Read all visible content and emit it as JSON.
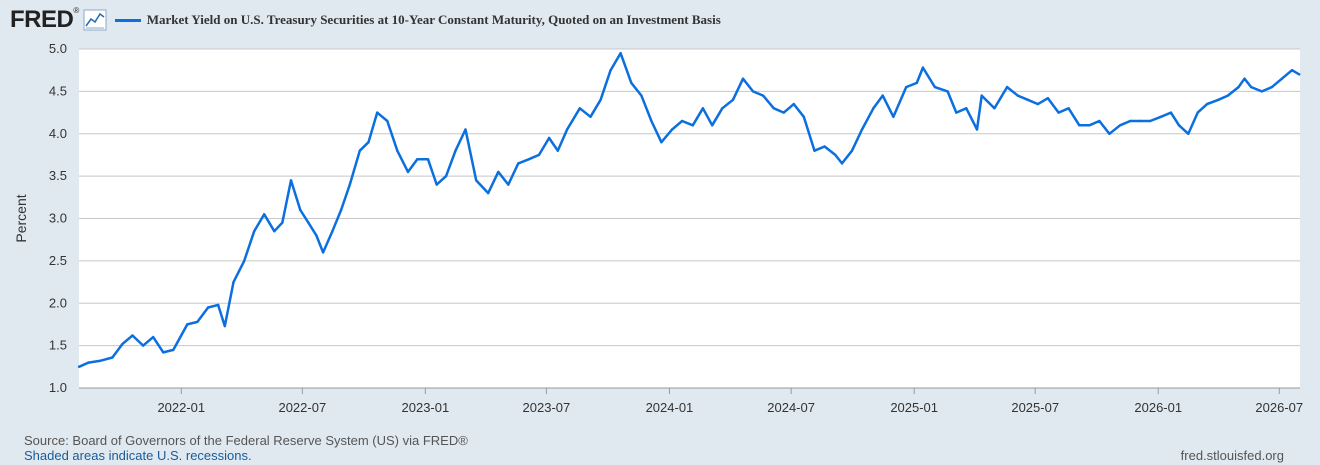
{
  "header": {
    "logo_text": "FRED",
    "logo_icon": "line-chart-icon",
    "legend_label": "Market Yield on U.S. Treasury Securities at 10-Year Constant Maturity, Quoted on an Investment Basis"
  },
  "colors": {
    "background": "#e1e9f0",
    "plot_background": "#ffffff",
    "series": "#0b6fe0",
    "grid": "#c8c8c8"
  },
  "footer": {
    "source": "Source: Board of Governors of the Federal Reserve System (US) via FRED®",
    "note": "Shaded areas indicate U.S. recessions.",
    "site": "fred.stlouisfed.org"
  },
  "chart_data": {
    "type": "line",
    "title": "Market Yield on U.S. Treasury Securities at 10-Year Constant Maturity, Quoted on an Investment Basis",
    "xlabel": "",
    "ylabel": "Percent",
    "ylim": [
      1.0,
      5.0
    ],
    "xlim": [
      "2021-08-01",
      "2026-08-01"
    ],
    "yticks": [
      "1.0",
      "1.5",
      "2.0",
      "2.5",
      "3.0",
      "3.5",
      "4.0",
      "4.5",
      "5.0"
    ],
    "xticks": [
      "2022-01",
      "2022-07",
      "2023-01",
      "2023-07",
      "2024-01",
      "2024-07",
      "2025-01",
      "2025-07",
      "2026-01",
      "2026-07"
    ],
    "grid": true,
    "legend": "top-left",
    "series": [
      {
        "name": "Market Yield on U.S. Treasury Securities at 10-Year Constant Maturity, Quoted on an Investment Basis",
        "points": [
          [
            "2021-08-01",
            1.25
          ],
          [
            "2021-08-15",
            1.3
          ],
          [
            "2021-09-01",
            1.32
          ],
          [
            "2021-09-20",
            1.36
          ],
          [
            "2021-10-05",
            1.52
          ],
          [
            "2021-10-20",
            1.62
          ],
          [
            "2021-11-05",
            1.5
          ],
          [
            "2021-11-20",
            1.6
          ],
          [
            "2021-12-05",
            1.42
          ],
          [
            "2021-12-20",
            1.45
          ],
          [
            "2022-01-10",
            1.75
          ],
          [
            "2022-01-25",
            1.78
          ],
          [
            "2022-02-10",
            1.95
          ],
          [
            "2022-02-25",
            1.98
          ],
          [
            "2022-03-07",
            1.73
          ],
          [
            "2022-03-20",
            2.25
          ],
          [
            "2022-04-05",
            2.5
          ],
          [
            "2022-04-20",
            2.85
          ],
          [
            "2022-05-05",
            3.05
          ],
          [
            "2022-05-20",
            2.85
          ],
          [
            "2022-06-01",
            2.95
          ],
          [
            "2022-06-14",
            3.45
          ],
          [
            "2022-06-28",
            3.1
          ],
          [
            "2022-07-10",
            2.95
          ],
          [
            "2022-07-22",
            2.8
          ],
          [
            "2022-08-01",
            2.6
          ],
          [
            "2022-08-15",
            2.85
          ],
          [
            "2022-08-28",
            3.1
          ],
          [
            "2022-09-10",
            3.4
          ],
          [
            "2022-09-25",
            3.8
          ],
          [
            "2022-10-08",
            3.9
          ],
          [
            "2022-10-21",
            4.25
          ],
          [
            "2022-11-05",
            4.15
          ],
          [
            "2022-11-20",
            3.8
          ],
          [
            "2022-12-06",
            3.55
          ],
          [
            "2022-12-20",
            3.7
          ],
          [
            "2023-01-05",
            3.7
          ],
          [
            "2023-01-18",
            3.4
          ],
          [
            "2023-02-01",
            3.5
          ],
          [
            "2023-02-15",
            3.8
          ],
          [
            "2023-03-02",
            4.05
          ],
          [
            "2023-03-18",
            3.45
          ],
          [
            "2023-04-05",
            3.3
          ],
          [
            "2023-04-20",
            3.55
          ],
          [
            "2023-05-05",
            3.4
          ],
          [
            "2023-05-20",
            3.65
          ],
          [
            "2023-06-05",
            3.7
          ],
          [
            "2023-06-20",
            3.75
          ],
          [
            "2023-07-05",
            3.95
          ],
          [
            "2023-07-18",
            3.8
          ],
          [
            "2023-08-01",
            4.05
          ],
          [
            "2023-08-20",
            4.3
          ],
          [
            "2023-09-05",
            4.2
          ],
          [
            "2023-09-20",
            4.4
          ],
          [
            "2023-10-05",
            4.75
          ],
          [
            "2023-10-20",
            4.95
          ],
          [
            "2023-11-05",
            4.6
          ],
          [
            "2023-11-20",
            4.45
          ],
          [
            "2023-12-05",
            4.15
          ],
          [
            "2023-12-20",
            3.9
          ],
          [
            "2024-01-05",
            4.05
          ],
          [
            "2024-01-20",
            4.15
          ],
          [
            "2024-02-05",
            4.1
          ],
          [
            "2024-02-20",
            4.3
          ],
          [
            "2024-03-05",
            4.1
          ],
          [
            "2024-03-20",
            4.3
          ],
          [
            "2024-04-05",
            4.4
          ],
          [
            "2024-04-20",
            4.65
          ],
          [
            "2024-05-05",
            4.5
          ],
          [
            "2024-05-20",
            4.45
          ],
          [
            "2024-06-05",
            4.3
          ],
          [
            "2024-06-20",
            4.25
          ],
          [
            "2024-07-05",
            4.35
          ],
          [
            "2024-07-20",
            4.2
          ],
          [
            "2024-08-05",
            3.8
          ],
          [
            "2024-08-20",
            3.85
          ],
          [
            "2024-09-05",
            3.75
          ],
          [
            "2024-09-15",
            3.65
          ],
          [
            "2024-09-30",
            3.8
          ],
          [
            "2024-10-15",
            4.05
          ],
          [
            "2024-11-01",
            4.3
          ],
          [
            "2024-11-15",
            4.45
          ],
          [
            "2024-12-01",
            4.2
          ],
          [
            "2024-12-20",
            4.55
          ],
          [
            "2025-01-05",
            4.6
          ],
          [
            "2025-01-14",
            4.78
          ],
          [
            "2025-02-01",
            4.55
          ],
          [
            "2025-02-20",
            4.5
          ],
          [
            "2025-03-05",
            4.25
          ],
          [
            "2025-03-20",
            4.3
          ],
          [
            "2025-04-05",
            4.05
          ],
          [
            "2025-04-12",
            4.45
          ],
          [
            "2025-05-01",
            4.3
          ],
          [
            "2025-05-20",
            4.55
          ],
          [
            "2025-06-05",
            4.45
          ],
          [
            "2025-06-20",
            4.4
          ],
          [
            "2025-07-05",
            4.35
          ],
          [
            "2025-07-20",
            4.42
          ],
          [
            "2025-08-05",
            4.25
          ],
          [
            "2025-08-20",
            4.3
          ],
          [
            "2025-09-05",
            4.1
          ],
          [
            "2025-09-20",
            4.1
          ],
          [
            "2025-10-05",
            4.15
          ],
          [
            "2025-10-20",
            4.0
          ],
          [
            "2025-11-05",
            4.1
          ],
          [
            "2025-11-20",
            4.15
          ],
          [
            "2025-12-05",
            4.15
          ],
          [
            "2025-12-20",
            4.15
          ],
          [
            "2026-01-05",
            4.2
          ],
          [
            "2026-01-20",
            4.25
          ],
          [
            "2026-02-01",
            4.1
          ],
          [
            "2026-02-15",
            4.0
          ],
          [
            "2026-03-01",
            4.25
          ],
          [
            "2026-03-15",
            4.35
          ],
          [
            "2026-04-01",
            4.4
          ],
          [
            "2026-04-15",
            4.45
          ],
          [
            "2026-05-01",
            4.55
          ],
          [
            "2026-05-10",
            4.65
          ],
          [
            "2026-05-20",
            4.55
          ],
          [
            "2026-06-05",
            4.5
          ],
          [
            "2026-06-20",
            4.55
          ],
          [
            "2026-07-05",
            4.65
          ],
          [
            "2026-07-20",
            4.75
          ],
          [
            "2026-07-31",
            4.7
          ]
        ]
      }
    ]
  }
}
